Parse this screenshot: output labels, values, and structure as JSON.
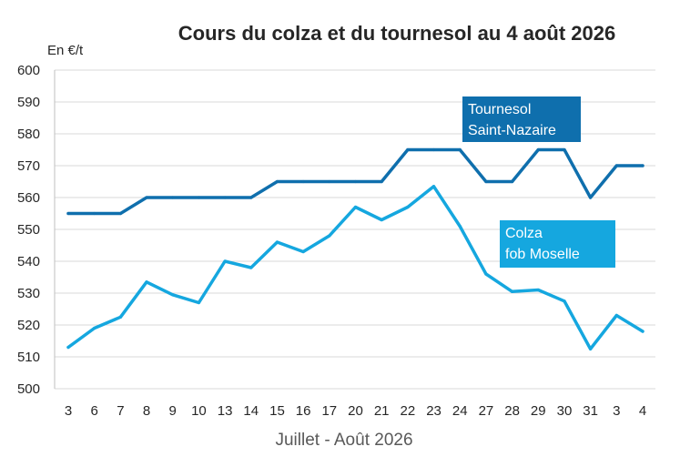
{
  "chart_data": {
    "type": "line",
    "title": "Cours du colza et du tournesol au 4 août 2026",
    "ylabel": "En €/t",
    "xlabel": "Juillet - Août 2026",
    "ylim": [
      500,
      600
    ],
    "yticks": [
      500,
      510,
      520,
      530,
      540,
      550,
      560,
      570,
      580,
      590,
      600
    ],
    "categories": [
      "3",
      "6",
      "7",
      "8",
      "9",
      "10",
      "13",
      "14",
      "15",
      "16",
      "17",
      "20",
      "21",
      "22",
      "23",
      "24",
      "27",
      "28",
      "29",
      "30",
      "31",
      "3",
      "4"
    ],
    "grid": true,
    "series": [
      {
        "name": "Tournesol Saint-Nazaire",
        "label_lines": [
          "Tournesol",
          "Saint-Nazaire"
        ],
        "color": "#0f6fad",
        "values": [
          555,
          555,
          555,
          560,
          560,
          560,
          560,
          560,
          565,
          565,
          565,
          565,
          565,
          575,
          575,
          575,
          565,
          565,
          575,
          575,
          560,
          570,
          570
        ]
      },
      {
        "name": "Colza fob Moselle",
        "label_lines": [
          "Colza",
          "fob Moselle"
        ],
        "color": "#15a7df",
        "values": [
          513,
          519,
          522.5,
          533.5,
          529.5,
          527,
          540,
          538,
          546,
          543,
          548,
          557,
          553,
          557,
          563.5,
          551,
          536,
          530.5,
          531,
          527.5,
          512.5,
          523,
          518
        ]
      }
    ]
  }
}
